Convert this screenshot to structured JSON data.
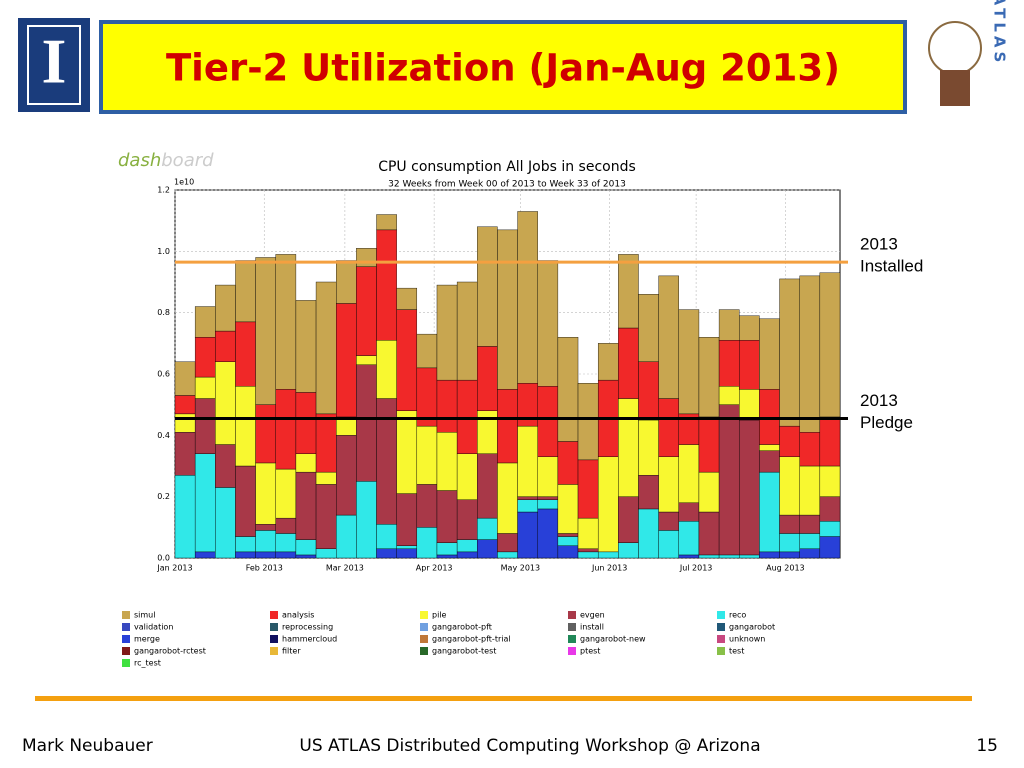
{
  "slide_title": "Tier-2 Utilization (Jan-Aug 2013)",
  "logo_left": "I",
  "logo_right": "ATLAS",
  "dashboard_logo": [
    "dash",
    "board"
  ],
  "chart_data": {
    "type": "stacked_bar",
    "title": "CPU consumption All Jobs in seconds",
    "subtitle": "32 Weeks from Week 00 of 2013 to Week 33 of 2013",
    "y_offset_label": "1e10",
    "xlim": [
      0,
      33
    ],
    "xticks": [
      {
        "value": 0,
        "label": "Jan 2013"
      },
      {
        "value": 4.43,
        "label": "Feb 2013"
      },
      {
        "value": 8.43,
        "label": "Mar 2013"
      },
      {
        "value": 12.86,
        "label": "Apr 2013"
      },
      {
        "value": 17.14,
        "label": "May 2013"
      },
      {
        "value": 21.57,
        "label": "Jun 2013"
      },
      {
        "value": 25.86,
        "label": "Jul 2013"
      },
      {
        "value": 30.29,
        "label": "Aug 2013"
      }
    ],
    "ylim": [
      0,
      1.2
    ],
    "yticks": [
      {
        "value": 0,
        "label": "0.0"
      },
      {
        "value": 0.2,
        "label": "0.2"
      },
      {
        "value": 0.4,
        "label": "0.4"
      },
      {
        "value": 0.6,
        "label": "0.6"
      },
      {
        "value": 0.8,
        "label": "0.8"
      },
      {
        "value": 1,
        "label": "1.0"
      },
      {
        "value": 1.2,
        "label": "1.2"
      }
    ],
    "grid": true,
    "series": [
      {
        "name": "simul",
        "color": "#c8a650",
        "values": [
          0.11,
          0.1,
          0.15,
          0.2,
          0.48,
          0.44,
          0.3,
          0.43,
          0.14,
          0.06,
          0.05,
          0.07,
          0.11,
          0.31,
          0.32,
          0.39,
          0.52,
          0.56,
          0.41,
          0.34,
          0.25,
          0.12,
          0.24,
          0.22,
          0.4,
          0.34,
          0.26,
          0.1,
          0.08,
          0.23,
          0.48,
          0.51,
          0.47
        ]
      },
      {
        "name": "analysis",
        "color": "#f02828",
        "values": [
          0.06,
          0.13,
          0.1,
          0.21,
          0.19,
          0.26,
          0.2,
          0.19,
          0.37,
          0.29,
          0.36,
          0.33,
          0.19,
          0.17,
          0.24,
          0.21,
          0.24,
          0.14,
          0.23,
          0.14,
          0.19,
          0.25,
          0.23,
          0.19,
          0.19,
          0.1,
          0.18,
          0.15,
          0.16,
          0.18,
          0.1,
          0.11,
          0.16
        ]
      },
      {
        "name": "pile",
        "color": "#f8f830",
        "values": [
          0.06,
          0.07,
          0.27,
          0.26,
          0.2,
          0.16,
          0.06,
          0.04,
          0.06,
          0.03,
          0.19,
          0.27,
          0.19,
          0.19,
          0.15,
          0.14,
          0.23,
          0.23,
          0.13,
          0.16,
          0.1,
          0.31,
          0.32,
          0.18,
          0.18,
          0.19,
          0.13,
          0.06,
          0.1,
          0.02,
          0.19,
          0.16,
          0.1
        ]
      },
      {
        "name": "evgen",
        "color": "#a83848",
        "values": [
          0.14,
          0.18,
          0.14,
          0.23,
          0.02,
          0.05,
          0.22,
          0.21,
          0.26,
          0.38,
          0.41,
          0.17,
          0.14,
          0.17,
          0.13,
          0.21,
          0.06,
          0.01,
          0.01,
          0.01,
          0.01,
          0,
          0.15,
          0.11,
          0.06,
          0.06,
          0.14,
          0.49,
          0.44,
          0.07,
          0.06,
          0.06,
          0.08
        ]
      },
      {
        "name": "reco",
        "color": "#30e8e8",
        "values": [
          0.27,
          0.32,
          0.23,
          0.05,
          0.07,
          0.06,
          0.05,
          0.03,
          0.14,
          0.25,
          0.08,
          0.01,
          0.1,
          0.04,
          0.04,
          0.07,
          0.02,
          0.04,
          0.03,
          0.03,
          0.02,
          0.02,
          0.05,
          0.16,
          0.09,
          0.11,
          0.01,
          0.01,
          0.01,
          0.26,
          0.06,
          0.05,
          0.05
        ]
      },
      {
        "name": "validation",
        "color": "#3848c0"
      },
      {
        "name": "reprocessing",
        "color": "#285868"
      },
      {
        "name": "gangarobot-pft",
        "color": "#70a0e0"
      },
      {
        "name": "install",
        "color": "#606060"
      },
      {
        "name": "gangarobot",
        "color": "#205878"
      },
      {
        "name": "merge",
        "color": "#2840d8",
        "values": [
          0,
          0.02,
          0,
          0.02,
          0.02,
          0.02,
          0.01,
          0,
          0,
          0,
          0.03,
          0.03,
          0,
          0.01,
          0.02,
          0.06,
          0,
          0.15,
          0.16,
          0.04,
          0,
          0,
          0,
          0,
          0,
          0.01,
          0,
          0,
          0,
          0.02,
          0.02,
          0.03,
          0.07
        ]
      },
      {
        "name": "hammercloud",
        "color": "#101060"
      },
      {
        "name": "gangarobot-pft-trial",
        "color": "#c07838"
      },
      {
        "name": "gangarobot-new",
        "color": "#208858"
      },
      {
        "name": "unknown",
        "color": "#c84880"
      },
      {
        "name": "gangarobot-rctest",
        "color": "#801818"
      },
      {
        "name": "filter",
        "color": "#e8b838"
      },
      {
        "name": "gangarobot-test",
        "color": "#286828"
      },
      {
        "name": "ptest",
        "color": "#e838e8"
      },
      {
        "name": "test",
        "color": "#88c048"
      },
      {
        "name": "rc_test",
        "color": "#40e040"
      }
    ],
    "reference_lines": [
      {
        "value": 0.965,
        "color": "#f4a040",
        "label": [
          "2013",
          "Installed"
        ]
      },
      {
        "value": 0.455,
        "color": "#000000",
        "label": [
          "2013",
          "Pledge"
        ]
      }
    ]
  },
  "footer": {
    "left": "Mark Neubauer",
    "center": "US ATLAS Distributed Computing Workshop @ Arizona",
    "right": "15"
  }
}
